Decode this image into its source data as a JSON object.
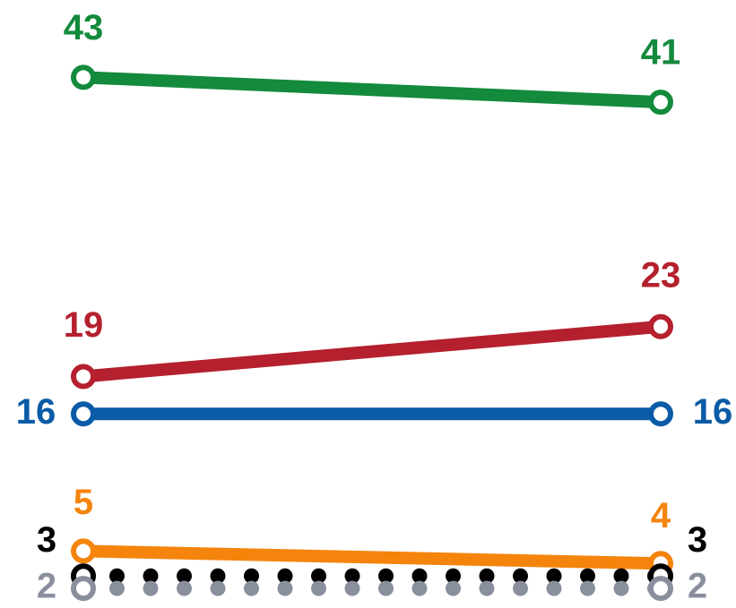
{
  "chart_data": {
    "type": "line",
    "categories": [
      null,
      null
    ],
    "ylim": [
      0,
      49.2
    ],
    "series": [
      {
        "name": null,
        "color": "#138a3c",
        "values": [
          43,
          41
        ]
      },
      {
        "name": null,
        "color": "#b5202e",
        "values": [
          19,
          23
        ]
      },
      {
        "name": null,
        "color": "#0a5ba6",
        "values": [
          16,
          16
        ]
      },
      {
        "name": null,
        "color": "#f5840c",
        "values": [
          5,
          4
        ]
      },
      {
        "name": null,
        "color": "#000000",
        "values": [
          3,
          3
        ],
        "line_style": "dotted"
      },
      {
        "name": null,
        "color": "#8a8f9e",
        "values": [
          2,
          2
        ],
        "line_style": "dotted"
      }
    ]
  }
}
